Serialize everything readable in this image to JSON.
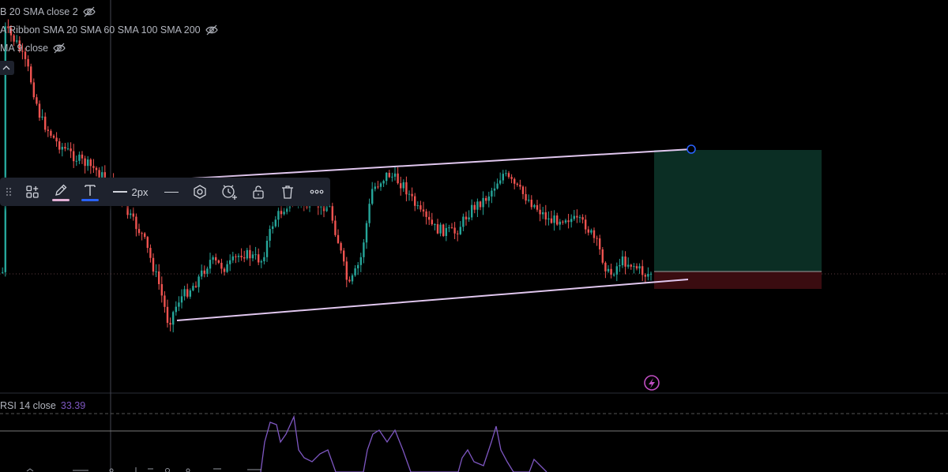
{
  "legend": {
    "items": [
      {
        "label": "B 20 SMA close 2",
        "icon": "eye-off-icon"
      },
      {
        "label": "A Ribbon SMA 20 SMA 60 SMA 100 SMA 200",
        "icon": "eye-off-icon"
      },
      {
        "label": "MA 9 close",
        "icon": "eye-off-icon"
      }
    ],
    "collapse_icon": "chevron-up-icon"
  },
  "toolbar": {
    "tools": [
      "drag-handle-icon",
      "templates-icon",
      "pencil-icon",
      "text-icon",
      "line-style-icon",
      "line-type-icon",
      "hexagon-icon",
      "alert-icon",
      "lock-icon",
      "trash-icon",
      "more-icon"
    ],
    "line_width_label": "2px",
    "pencil_color": "#e3b0d6",
    "text_color": "#2962ff"
  },
  "rsi": {
    "name": "RSI 14 close",
    "value": "33.39",
    "color": "#7e57c2"
  },
  "colors": {
    "up": "#26a69a",
    "down": "#ef5350",
    "channel": "#e1c7ef",
    "profit_zone": "#0b2e24",
    "loss_zone": "#3a0c10",
    "handle": "#2962ff"
  },
  "chart_data": {
    "type": "candlestick",
    "title": "",
    "drawings": [
      "ascending channel",
      "long position (take profit / stop loss)"
    ],
    "indicators": [
      "RSI 14 close"
    ]
  }
}
